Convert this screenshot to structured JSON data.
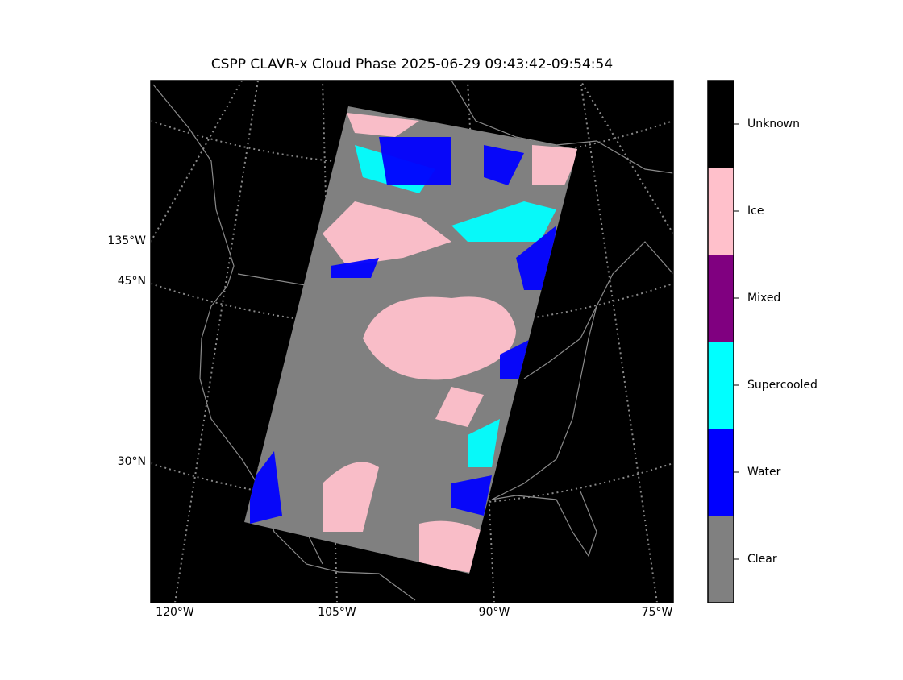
{
  "title": "CSPP CLAVR-x Cloud Phase 2025-06-29 09:43:42-09:54:54",
  "lon_labels": [
    "120°W",
    "105°W",
    "90°W",
    "75°W"
  ],
  "lat_labels": [
    "135°W",
    "45°N",
    "30°N"
  ],
  "colorbar": {
    "classes": [
      {
        "label": "Clear",
        "color": "#808080"
      },
      {
        "label": "Water",
        "color": "#0000ff"
      },
      {
        "label": "Supercooled",
        "color": "#00ffff"
      },
      {
        "label": "Mixed",
        "color": "#800080"
      },
      {
        "label": "Ice",
        "color": "#ffc0cb"
      },
      {
        "label": "Unknown",
        "color": "#000000"
      }
    ]
  }
}
